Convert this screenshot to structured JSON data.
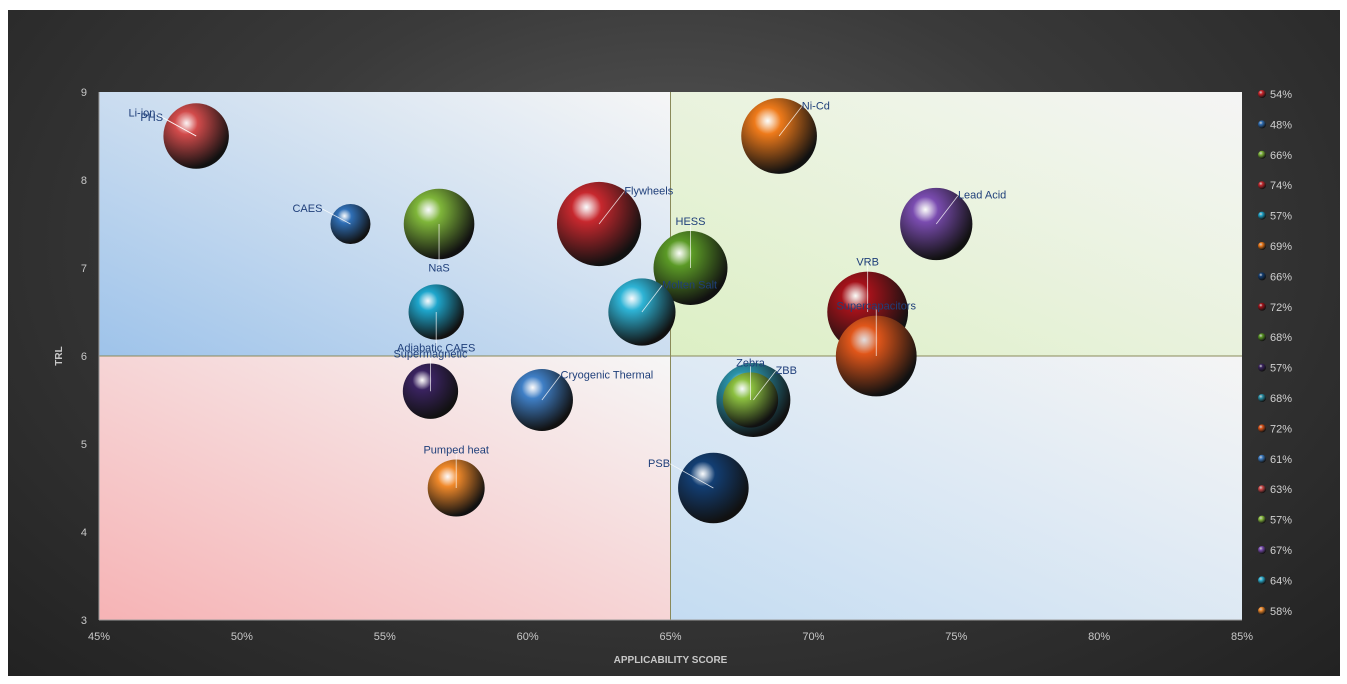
{
  "chart_data": {
    "type": "bubble",
    "xlabel": "APPLICABILITY SCORE",
    "ylabel": "TRL",
    "xlim": [
      0.45,
      0.85
    ],
    "ylim": [
      3,
      9
    ],
    "x_ticks": [
      "45%",
      "50%",
      "55%",
      "60%",
      "65%",
      "70%",
      "75%",
      "80%",
      "85%"
    ],
    "y_ticks": [
      "3",
      "4",
      "5",
      "6",
      "7",
      "8",
      "9"
    ],
    "quadrant_split": {
      "x": 0.65,
      "y": 6
    },
    "quadrant_colors": {
      "top_left": "#9ec3ea",
      "top_right": "#dcefc4",
      "bottom_left": "#f6b3b5",
      "bottom_right": "#c4dcf2"
    },
    "legend_position": "right",
    "series": [
      {
        "name": "PHS",
        "x": 0.484,
        "y": 8.5,
        "size": 54,
        "color": "#d0252c",
        "legend": "54%",
        "label_side": "left"
      },
      {
        "name": "CAES",
        "x": 0.538,
        "y": 7.5,
        "size": 48,
        "color": "#2f6fb6",
        "legend": "48%",
        "label_side": "left"
      },
      {
        "name": "NaS",
        "x": 0.569,
        "y": 7.5,
        "size": 66,
        "color": "#7fb63a",
        "legend": "66%",
        "label_side": "below"
      },
      {
        "name": "Flywheels",
        "x": 0.625,
        "y": 7.5,
        "size": 74,
        "color": "#c7282e",
        "legend": "74%",
        "label_side": "right"
      },
      {
        "name": "Adiabatic CAES",
        "x": 0.568,
        "y": 6.5,
        "size": 57,
        "color": "#1ea6cc",
        "legend": "57%",
        "label_side": "below"
      },
      {
        "name": "Ni-Cd",
        "x": 0.688,
        "y": 8.5,
        "size": 69,
        "color": "#ee7a1a",
        "legend": "69%",
        "label_side": "right"
      },
      {
        "name": "PSB",
        "x": 0.665,
        "y": 4.5,
        "size": 66,
        "color": "#123e73",
        "legend": "66%",
        "label_side": "left"
      },
      {
        "name": "VRB",
        "x": 0.719,
        "y": 6.5,
        "size": 72,
        "color": "#a4121a",
        "legend": "72%",
        "label_side": "above"
      },
      {
        "name": "HESS",
        "x": 0.657,
        "y": 7.0,
        "size": 68,
        "color": "#5b9a26",
        "legend": "68%",
        "label_side": "above"
      },
      {
        "name": "Supermagnetic",
        "x": 0.566,
        "y": 5.6,
        "size": 57,
        "color": "#3a2360",
        "legend": "57%",
        "label_side": "above"
      },
      {
        "name": "ZBB",
        "x": 0.679,
        "y": 5.5,
        "size": 68,
        "color": "#2b94ab",
        "legend": "68%",
        "label_side": "right"
      },
      {
        "name": "Supercapacitors",
        "x": 0.722,
        "y": 6.0,
        "size": 72,
        "color": "#e0561a",
        "legend": "72%",
        "label_side": "above"
      },
      {
        "name": "Cryogenic Thermal",
        "x": 0.605,
        "y": 5.5,
        "size": 61,
        "color": "#3f7fc6",
        "legend": "61%",
        "label_side": "right"
      },
      {
        "name": "Li-ion",
        "x": 0.484,
        "y": 8.5,
        "size": 63,
        "color": "#d24b4b",
        "legend": "63%",
        "label_side": "left"
      },
      {
        "name": "Zebra",
        "x": 0.678,
        "y": 5.5,
        "size": 57,
        "color": "#8cc040",
        "legend": "57%",
        "label_side": "above"
      },
      {
        "name": "Lead Acid",
        "x": 0.743,
        "y": 7.5,
        "size": 67,
        "color": "#7a4cb0",
        "legend": "67%",
        "label_side": "right"
      },
      {
        "name": "Molten Salt",
        "x": 0.64,
        "y": 6.5,
        "size": 64,
        "color": "#2eb4d6",
        "legend": "64%",
        "label_side": "right"
      },
      {
        "name": "Pumped heat",
        "x": 0.575,
        "y": 4.5,
        "size": 58,
        "color": "#f0892a",
        "legend": "58%",
        "label_side": "above"
      }
    ]
  }
}
